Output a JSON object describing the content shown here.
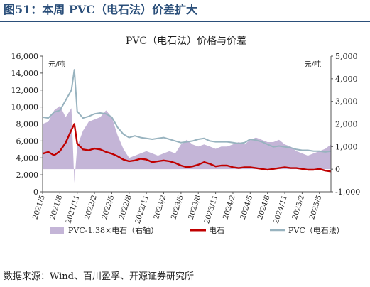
{
  "figure_title": "图51：本周 PVC（电石法）价差扩大",
  "source": "数据来源：Wind、百川盈孚、开源证券研究所",
  "chart_data": {
    "type": "line",
    "title": "PVC（电石法）价格与价差",
    "left_unit": "元/吨",
    "right_unit": "元/吨",
    "y_left": {
      "min": 0,
      "max": 16000,
      "ticks": [
        "0",
        "2,000",
        "4,000",
        "6,000",
        "8,000",
        "10,000",
        "12,000",
        "14,000",
        "16,000"
      ]
    },
    "y_right": {
      "min": -1000,
      "max": 5000,
      "ticks": [
        "-1,000",
        "0",
        "1,000",
        "2,000",
        "3,000",
        "4,000",
        "5,000"
      ]
    },
    "x_range_months": {
      "start": "2021-05",
      "end": "2025-07"
    },
    "x_tick_labels": [
      "2021/5",
      "2021/8",
      "2021/11",
      "2022/2",
      "2022/5",
      "2022/8",
      "2022/11",
      "2023/2",
      "2023/5",
      "2023/8",
      "2023/11",
      "2024/2",
      "2024/5",
      "2024/8",
      "2024/11",
      "2025/2",
      "2025/5"
    ],
    "series": [
      {
        "name": "PVC-1.38×电石（右轴）",
        "type": "area",
        "axis": "right",
        "color": "#b09cc9",
        "points": [
          [
            "2021-05",
            2000
          ],
          [
            "2021-06",
            2100
          ],
          [
            "2021-07",
            2600
          ],
          [
            "2021-08",
            2800
          ],
          [
            "2021-09",
            2300
          ],
          [
            "2021-10",
            2700
          ],
          [
            "2021-10.5",
            -600
          ],
          [
            "2021-11",
            1000
          ],
          [
            "2021-12",
            1700
          ],
          [
            "2022-01",
            2100
          ],
          [
            "2022-02",
            2200
          ],
          [
            "2022-03",
            2300
          ],
          [
            "2022-04",
            2600
          ],
          [
            "2022-05",
            2300
          ],
          [
            "2022-06",
            1500
          ],
          [
            "2022-07",
            900
          ],
          [
            "2022-08",
            500
          ],
          [
            "2022-09",
            600
          ],
          [
            "2022-10",
            700
          ],
          [
            "2022-11",
            800
          ],
          [
            "2022-12",
            700
          ],
          [
            "2023-01",
            600
          ],
          [
            "2023-02",
            700
          ],
          [
            "2023-03",
            800
          ],
          [
            "2023-04",
            700
          ],
          [
            "2023-05",
            1100
          ],
          [
            "2023-06",
            1300
          ],
          [
            "2023-07",
            1100
          ],
          [
            "2023-08",
            1000
          ],
          [
            "2023-09",
            1100
          ],
          [
            "2023-10",
            1000
          ],
          [
            "2023-11",
            900
          ],
          [
            "2023-12",
            1000
          ],
          [
            "2024-01",
            1000
          ],
          [
            "2024-02",
            1100
          ],
          [
            "2024-03",
            1200
          ],
          [
            "2024-04",
            1100
          ],
          [
            "2024-05",
            1300
          ],
          [
            "2024-06",
            1400
          ],
          [
            "2024-07",
            1300
          ],
          [
            "2024-08",
            1200
          ],
          [
            "2024-09",
            1200
          ],
          [
            "2024-10",
            1300
          ],
          [
            "2024-11",
            1100
          ],
          [
            "2024-12",
            1000
          ],
          [
            "2025-01",
            800
          ],
          [
            "2025-02",
            700
          ],
          [
            "2025-03",
            600
          ],
          [
            "2025-04",
            700
          ],
          [
            "2025-05",
            800
          ],
          [
            "2025-06",
            900
          ],
          [
            "2025-07",
            1100
          ]
        ]
      },
      {
        "name": "电石",
        "type": "line",
        "axis": "left",
        "color": "#c00000",
        "points": [
          [
            "2021-05",
            4500
          ],
          [
            "2021-06",
            4700
          ],
          [
            "2021-07",
            4300
          ],
          [
            "2021-08",
            4800
          ],
          [
            "2021-09",
            5800
          ],
          [
            "2021-10",
            7300
          ],
          [
            "2021-10.5",
            8000
          ],
          [
            "2021-11",
            5700
          ],
          [
            "2021-12",
            5000
          ],
          [
            "2022-01",
            4900
          ],
          [
            "2022-02",
            5100
          ],
          [
            "2022-03",
            5000
          ],
          [
            "2022-04",
            4700
          ],
          [
            "2022-05",
            4500
          ],
          [
            "2022-06",
            4200
          ],
          [
            "2022-07",
            3800
          ],
          [
            "2022-08",
            3600
          ],
          [
            "2022-09",
            3700
          ],
          [
            "2022-10",
            3900
          ],
          [
            "2022-11",
            3800
          ],
          [
            "2022-12",
            3500
          ],
          [
            "2023-01",
            3600
          ],
          [
            "2023-02",
            3700
          ],
          [
            "2023-03",
            3600
          ],
          [
            "2023-04",
            3400
          ],
          [
            "2023-05",
            3100
          ],
          [
            "2023-06",
            2900
          ],
          [
            "2023-07",
            3000
          ],
          [
            "2023-08",
            3200
          ],
          [
            "2023-09",
            3500
          ],
          [
            "2023-10",
            3300
          ],
          [
            "2023-11",
            3000
          ],
          [
            "2023-12",
            3100
          ],
          [
            "2024-01",
            3100
          ],
          [
            "2024-02",
            2900
          ],
          [
            "2024-03",
            2800
          ],
          [
            "2024-04",
            2900
          ],
          [
            "2024-05",
            2900
          ],
          [
            "2024-06",
            2800
          ],
          [
            "2024-07",
            2700
          ],
          [
            "2024-08",
            2600
          ],
          [
            "2024-09",
            2700
          ],
          [
            "2024-10",
            2800
          ],
          [
            "2024-11",
            2900
          ],
          [
            "2024-12",
            2800
          ],
          [
            "2025-01",
            2800
          ],
          [
            "2025-02",
            2700
          ],
          [
            "2025-03",
            2600
          ],
          [
            "2025-04",
            2600
          ],
          [
            "2025-05",
            2700
          ],
          [
            "2025-06",
            2500
          ],
          [
            "2025-07",
            2400
          ]
        ]
      },
      {
        "name": "PVC（电石法）",
        "type": "line",
        "axis": "left",
        "color": "#98b3bf",
        "points": [
          [
            "2021-05",
            8800
          ],
          [
            "2021-06",
            8700
          ],
          [
            "2021-07",
            9400
          ],
          [
            "2021-08",
            9600
          ],
          [
            "2021-09",
            10800
          ],
          [
            "2021-10",
            12000
          ],
          [
            "2021-10.5",
            14400
          ],
          [
            "2021-11",
            9500
          ],
          [
            "2021-12",
            8700
          ],
          [
            "2022-01",
            8900
          ],
          [
            "2022-02",
            9200
          ],
          [
            "2022-03",
            9300
          ],
          [
            "2022-04",
            9200
          ],
          [
            "2022-05",
            8800
          ],
          [
            "2022-06",
            7600
          ],
          [
            "2022-07",
            6800
          ],
          [
            "2022-08",
            6400
          ],
          [
            "2022-09",
            6600
          ],
          [
            "2022-10",
            6400
          ],
          [
            "2022-11",
            6300
          ],
          [
            "2022-12",
            6200
          ],
          [
            "2023-01",
            6300
          ],
          [
            "2023-02",
            6400
          ],
          [
            "2023-03",
            6200
          ],
          [
            "2023-04",
            6000
          ],
          [
            "2023-05",
            5800
          ],
          [
            "2023-06",
            5900
          ],
          [
            "2023-07",
            6000
          ],
          [
            "2023-08",
            6200
          ],
          [
            "2023-09",
            6300
          ],
          [
            "2023-10",
            6000
          ],
          [
            "2023-11",
            5900
          ],
          [
            "2023-12",
            5900
          ],
          [
            "2024-01",
            5900
          ],
          [
            "2024-02",
            5800
          ],
          [
            "2024-03",
            5700
          ],
          [
            "2024-04",
            5800
          ],
          [
            "2024-05",
            6200
          ],
          [
            "2024-06",
            6100
          ],
          [
            "2024-07",
            5900
          ],
          [
            "2024-08",
            5600
          ],
          [
            "2024-09",
            5300
          ],
          [
            "2024-10",
            5400
          ],
          [
            "2024-11",
            5300
          ],
          [
            "2024-12",
            5200
          ],
          [
            "2025-01",
            5000
          ],
          [
            "2025-02",
            4900
          ],
          [
            "2025-03",
            4900
          ],
          [
            "2025-04",
            4800
          ],
          [
            "2025-05",
            4800
          ],
          [
            "2025-06",
            4700
          ],
          [
            "2025-07",
            4800
          ]
        ]
      }
    ],
    "legend": [
      "PVC-1.38×电石（右轴）",
      "电石",
      "PVC（电石法）"
    ],
    "legend_position": "bottom",
    "grid": false
  }
}
